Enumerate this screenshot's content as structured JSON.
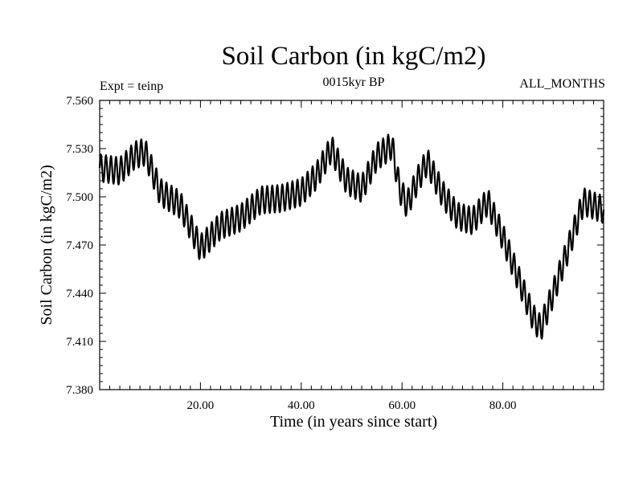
{
  "chart_data": {
    "type": "line",
    "title": "Soil Carbon (in kgC/m2)",
    "subtitle": "0015kyr BP",
    "left_label": "Expt = teinp",
    "right_label": "ALL_MONTHS",
    "xlabel": "Time (in years since start)",
    "ylabel": "Soil Carbon (in kgC/m2)",
    "xlim": [
      0,
      100
    ],
    "ylim": [
      7.38,
      7.56
    ],
    "x_ticks": [
      20,
      40,
      60,
      80
    ],
    "x_tick_labels": [
      "20.00",
      "40.00",
      "60.00",
      "80.00"
    ],
    "y_ticks": [
      7.38,
      7.41,
      7.44,
      7.47,
      7.5,
      7.53,
      7.56
    ],
    "y_tick_labels": [
      "7.380",
      "7.410",
      "7.440",
      "7.470",
      "7.500",
      "7.530",
      "7.560"
    ],
    "series": [
      {
        "name": "Soil Carbon",
        "trend_x": [
          0,
          4,
          7,
          9,
          12,
          16,
          20,
          24,
          28,
          32,
          36,
          40,
          43,
          46,
          49,
          52,
          55,
          58,
          59.5,
          61,
          63,
          65,
          68,
          71,
          74,
          77,
          80,
          83,
          86,
          87.5,
          90,
          93,
          96,
          100
        ],
        "trend_y": [
          7.518,
          7.516,
          7.526,
          7.528,
          7.503,
          7.495,
          7.468,
          7.482,
          7.487,
          7.498,
          7.499,
          7.503,
          7.513,
          7.53,
          7.51,
          7.505,
          7.525,
          7.532,
          7.505,
          7.495,
          7.51,
          7.522,
          7.502,
          7.488,
          7.485,
          7.497,
          7.475,
          7.45,
          7.425,
          7.418,
          7.44,
          7.468,
          7.497,
          7.492
        ],
        "seasonal_amplitude": 0.0085,
        "cycle_length_years": 1
      }
    ]
  }
}
